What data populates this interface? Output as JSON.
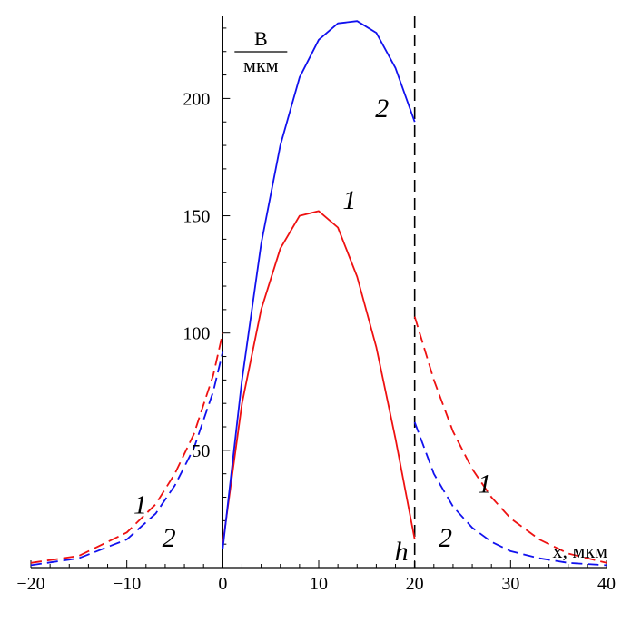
{
  "chart_data": {
    "type": "line",
    "xlim": [
      -20,
      40
    ],
    "ylim": [
      0,
      235
    ],
    "x_ticks": [
      -20,
      -10,
      0,
      10,
      20,
      30,
      40
    ],
    "y_ticks": [
      50,
      100,
      150,
      200
    ],
    "y_unit": {
      "numerator": "В",
      "denominator": "мкм"
    },
    "x_unit": "x, мкм",
    "h_label": "h",
    "h_value": 20,
    "grid": false,
    "colors": {
      "curve1": "#ee1111",
      "curve2": "#1111ee",
      "axis": "#000000"
    },
    "series": [
      {
        "curve_label": "1",
        "color": "#ee1111",
        "outside_left": {
          "style": "dashed",
          "x": [
            -20,
            -15,
            -10,
            -7,
            -5,
            -3,
            -1,
            0
          ],
          "y": [
            2,
            5,
            15,
            27,
            40,
            57,
            82,
            100
          ]
        },
        "inside": {
          "style": "solid",
          "x": [
            0,
            2,
            4,
            6,
            8,
            10,
            12,
            14,
            16,
            18,
            20
          ],
          "y": [
            10,
            70,
            110,
            136,
            150,
            152,
            145,
            124,
            94,
            55,
            12
          ]
        },
        "outside_right": {
          "style": "dashed",
          "x": [
            20,
            22,
            24,
            26,
            28,
            30,
            33,
            36,
            40
          ],
          "y": [
            107,
            80,
            58,
            42,
            30,
            21,
            12,
            6,
            2
          ]
        }
      },
      {
        "curve_label": "2",
        "color": "#1111ee",
        "outside_left": {
          "style": "dashed",
          "x": [
            -20,
            -15,
            -10,
            -7,
            -5,
            -3,
            -1,
            0
          ],
          "y": [
            1,
            4,
            12,
            23,
            35,
            51,
            75,
            92
          ]
        },
        "inside": {
          "style": "solid",
          "x": [
            0,
            2,
            4,
            6,
            8,
            10,
            12,
            14,
            16,
            18,
            20
          ],
          "y": [
            8,
            80,
            138,
            180,
            209,
            225,
            232,
            233,
            228,
            213,
            190
          ]
        },
        "outside_right": {
          "style": "dashed",
          "x": [
            20,
            22,
            24,
            26,
            28,
            30,
            33,
            36,
            40
          ],
          "y": [
            62,
            40,
            26,
            17,
            11,
            7,
            4,
            2,
            1
          ]
        }
      }
    ],
    "annotations": [
      {
        "text": "2",
        "x": 16.6,
        "y": 192
      },
      {
        "text": "1",
        "x": 13.2,
        "y": 153
      },
      {
        "text": "1",
        "x": -8.6,
        "y": 23
      },
      {
        "text": "2",
        "x": -5.6,
        "y": 9
      },
      {
        "text": "1",
        "x": 27.3,
        "y": 32
      },
      {
        "text": "2",
        "x": 23.2,
        "y": 9
      }
    ]
  }
}
